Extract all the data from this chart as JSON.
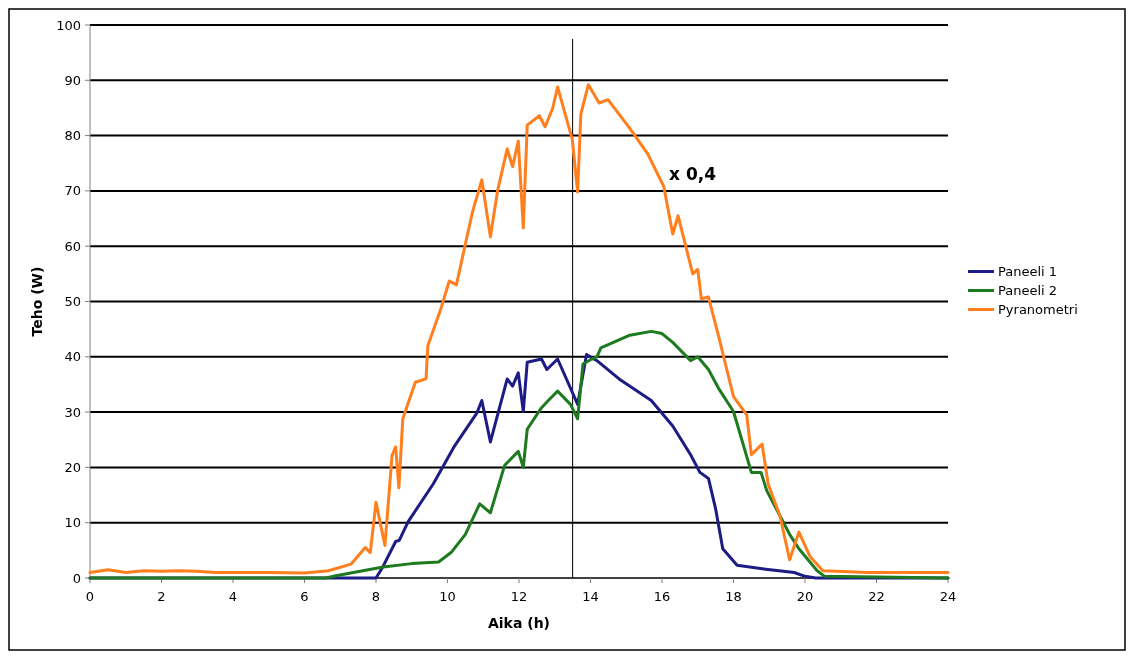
{
  "chart_data": {
    "type": "line",
    "xlabel": "Aika (h)",
    "ylabel": "Teho (W)",
    "xlim": [
      0,
      24
    ],
    "xticks": [
      0,
      2,
      4,
      6,
      8,
      10,
      12,
      14,
      16,
      18,
      20,
      22,
      24
    ],
    "ylim": [
      0,
      100
    ],
    "yticks": [
      0,
      10,
      20,
      30,
      40,
      50,
      60,
      70,
      80,
      90,
      100
    ],
    "grid": "y",
    "legend": "right",
    "line_style": "solid",
    "marker": "none",
    "ref_lines": [
      {
        "axis": "x",
        "value": 13.5,
        "color": "#000000"
      }
    ],
    "annotations": [
      "x 0,4"
    ],
    "series": [
      {
        "name": "Paneeli 1",
        "color": "#1c1c84",
        "x": [
          0,
          8.0,
          8.19,
          8.55,
          8.65,
          8.9,
          9.6,
          10.2,
          10.82,
          10.96,
          11.2,
          11.67,
          11.82,
          11.98,
          12.12,
          12.23,
          12.63,
          12.78,
          13.08,
          13.64,
          13.89,
          14.18,
          14.8,
          15.7,
          16.3,
          16.8,
          17.06,
          17.3,
          17.5,
          17.7,
          18.1,
          18.9,
          19.7,
          20.0,
          20.3,
          24
        ],
        "values": [
          0,
          0,
          2,
          6.6,
          6.8,
          10.2,
          17,
          23.9,
          29.8,
          32.1,
          24.6,
          36,
          34.7,
          37.1,
          30.1,
          39,
          39.6,
          37.7,
          39.6,
          31.4,
          40.4,
          39.3,
          36,
          32.1,
          27.5,
          22.3,
          19.1,
          18,
          12.5,
          5.3,
          2.3,
          1.6,
          1,
          0.3,
          0,
          0
        ]
      },
      {
        "name": "Paneeli 2",
        "color": "#1e7a1e",
        "x": [
          0,
          6.6,
          6.88,
          8.2,
          9.0,
          9.75,
          10.1,
          10.5,
          10.9,
          11.2,
          11.6,
          11.98,
          12.12,
          12.23,
          12.63,
          12.82,
          13.08,
          13.44,
          13.64,
          13.79,
          14.04,
          14.18,
          14.29,
          15.1,
          15.7,
          16.0,
          16.3,
          16.8,
          17.0,
          17.3,
          17.6,
          18.0,
          18.5,
          18.77,
          18.93,
          19.57,
          19.83,
          20.34,
          20.55,
          24
        ],
        "values": [
          0,
          0,
          0.4,
          2,
          2.6,
          2.9,
          4.6,
          7.9,
          13.4,
          11.8,
          20.4,
          22.9,
          20,
          26.9,
          30.8,
          32.1,
          33.8,
          31.4,
          28.8,
          38.7,
          39.6,
          40,
          41.6,
          43.9,
          44.6,
          44.2,
          42.6,
          39.3,
          40,
          37.7,
          34.1,
          30.1,
          19.1,
          19.1,
          15.8,
          7.9,
          5.3,
          1.3,
          0.3,
          0
        ]
      },
      {
        "name": "Pyranometri",
        "color": "#ff7f1e",
        "x": [
          0,
          0.5,
          1,
          1.5,
          2,
          2.5,
          3,
          3.5,
          4,
          5,
          6,
          6.67,
          7.3,
          7.7,
          7.84,
          8.0,
          8.25,
          8.45,
          8.55,
          8.64,
          8.75,
          9.1,
          9.4,
          9.45,
          9.8,
          10.05,
          10.25,
          10.5,
          10.7,
          10.96,
          11.2,
          11.4,
          11.67,
          11.82,
          11.98,
          12.12,
          12.23,
          12.57,
          12.73,
          12.94,
          13.08,
          13.49,
          13.64,
          13.73,
          13.94,
          14.24,
          14.49,
          15.1,
          15.6,
          16.05,
          16.3,
          16.45,
          16.86,
          17.0,
          17.1,
          17.3,
          17.6,
          18.0,
          18.37,
          18.5,
          18.8,
          18.97,
          19.3,
          19.57,
          19.83,
          20.14,
          20.5,
          21.75,
          24
        ],
        "values": [
          1,
          1.5,
          1,
          1.3,
          1.2,
          1.3,
          1.2,
          1,
          1,
          1,
          0.9,
          1.3,
          2.5,
          5.5,
          4.6,
          13.7,
          5.9,
          22.2,
          23.7,
          16.3,
          28.8,
          35.4,
          36,
          42,
          48.4,
          53.7,
          53,
          60.4,
          66.2,
          72,
          61.7,
          70,
          77.6,
          74.4,
          79,
          63.3,
          81.9,
          83.6,
          81.6,
          84.9,
          88.8,
          79.3,
          69.8,
          83.9,
          89.2,
          85.9,
          86.5,
          81.3,
          76.7,
          70.8,
          62.2,
          65.5,
          55,
          55.8,
          50.5,
          50.8,
          43.3,
          32.8,
          29.5,
          22.3,
          24.2,
          17,
          11.2,
          3.3,
          8.3,
          3.9,
          1.3,
          1,
          1
        ]
      }
    ]
  }
}
